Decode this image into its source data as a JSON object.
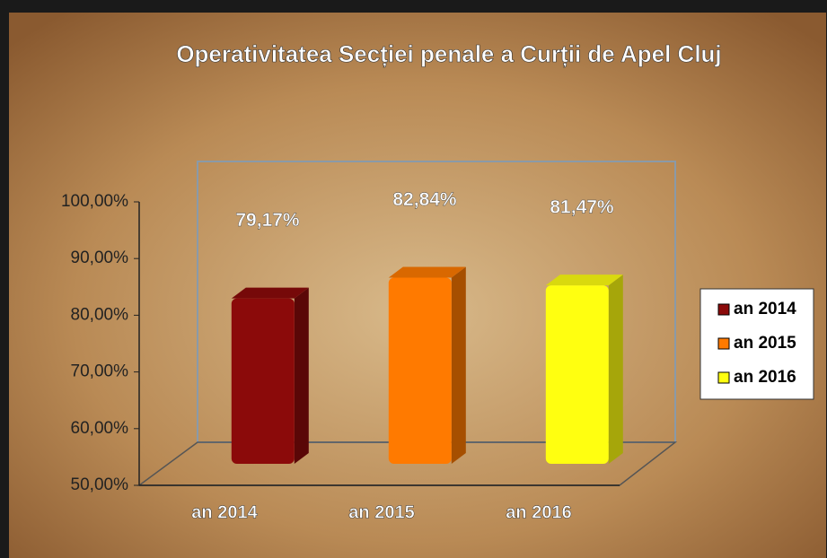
{
  "chart_data": {
    "type": "bar",
    "title": "Operativitatea Secției penale a Curții de Apel Cluj",
    "categories": [
      "an 2014",
      "an 2015",
      "an 2016"
    ],
    "values": [
      79.17,
      82.84,
      81.47
    ],
    "value_labels": [
      "79,17%",
      "82,84%",
      "81,47%"
    ],
    "colors": [
      "#8b0a0a",
      "#ff7a00",
      "#ffff10"
    ],
    "ylim": [
      50,
      100
    ],
    "yticks": [
      {
        "value": 50,
        "label": "50,00%"
      },
      {
        "value": 60,
        "label": "60,00%"
      },
      {
        "value": 70,
        "label": "70,00%"
      },
      {
        "value": 80,
        "label": "80,00%"
      },
      {
        "value": 90,
        "label": "90,00%"
      },
      {
        "value": 100,
        "label": "100,00%"
      }
    ],
    "legend": "right"
  }
}
